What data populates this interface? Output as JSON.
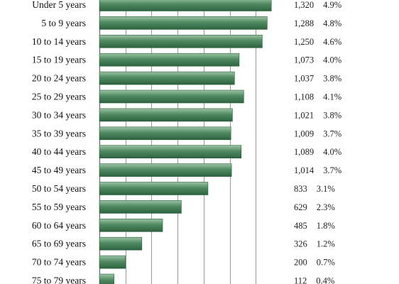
{
  "chart_data": {
    "type": "bar",
    "orientation": "horizontal",
    "title": "",
    "xlabel": "",
    "ylabel": "",
    "grid": true,
    "legend": "none",
    "xlim": [
      0,
      1400
    ],
    "gridlines_at": [
      200,
      400,
      600,
      800,
      1000,
      1200
    ],
    "categories": [
      "Under 5 years",
      "5 to 9 years",
      "10 to 14 years",
      "15 to 19 years",
      "20 to 24 years",
      "25 to 29 years",
      "30 to 34 years",
      "35 to 39 years",
      "40 to 44 years",
      "45 to 49 years",
      "50 to 54 years",
      "55 to 59 years",
      "60 to 64 years",
      "65 to 69 years",
      "70 to 74 years",
      "75 to 79 years"
    ],
    "values": [
      1320,
      1288,
      1250,
      1073,
      1037,
      1108,
      1021,
      1009,
      1089,
      1014,
      833,
      629,
      485,
      326,
      200,
      112
    ],
    "value_labels": [
      "1,320",
      "1,288",
      "1,250",
      "1,073",
      "1,037",
      "1,108",
      "1,021",
      "1,009",
      "1,089",
      "1,014",
      "833",
      "629",
      "485",
      "326",
      "200",
      "112"
    ],
    "percent_labels": [
      "4.9%",
      "4.8%",
      "4.6%",
      "4.0%",
      "3.8%",
      "4.1%",
      "3.8%",
      "3.7%",
      "4.0%",
      "3.7%",
      "3.1%",
      "2.3%",
      "1.8%",
      "1.2%",
      "0.7%",
      "0.4%"
    ],
    "colors": {
      "bar_light": "#8fb99a",
      "bar_dark": "#2f6b45",
      "bar_mid": "#4f8a60"
    }
  }
}
